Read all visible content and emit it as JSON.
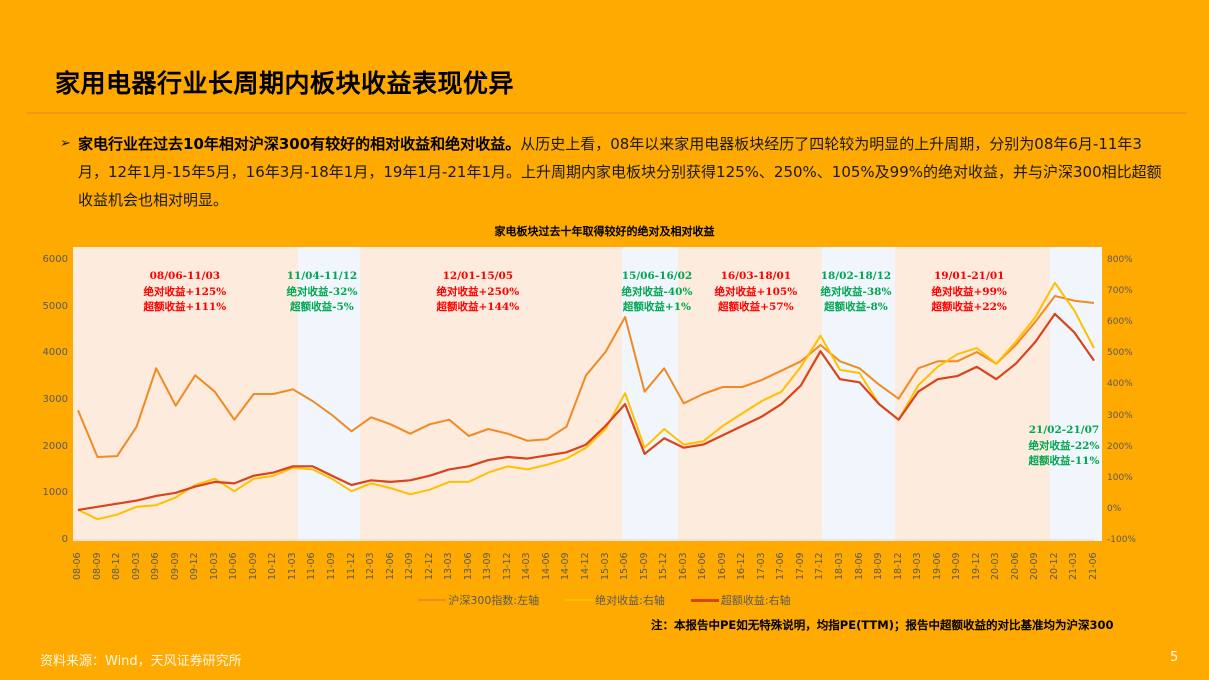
{
  "slide": {
    "title": "家用电器行业长周期内板块收益表现优异",
    "bullet_marker": "➢",
    "bullet_bold": "家电行业在过去10年相对沪深300有较好的相对收益和绝对收益。",
    "bullet_text": "从历史上看，08年以来家用电器板块经历了四轮较为明显的上升周期，分别为08年6月-11年3月，12年1月-15年5月，16年3月-18年1月，19年1月-21年1月。上升周期内家电板块分别获得125%、250%、105%及99%的绝对收益，并与沪深300相比超额收益机会也相对明显。",
    "note": "注：本报告中PE如无特殊说明，均指PE(TTM)；报告中超额收益的对比基准均为沪深300",
    "source": "资料来源：Wind，天风证券研究所",
    "page_number": "5"
  },
  "colors": {
    "background": "#FFAA00",
    "hs300": "#F08A24",
    "absolute": "#FFC000",
    "excess": "#D9441C",
    "up_band": "#FDEBDD",
    "down_band": "#F1F6FD",
    "ann_red": "#FF0000",
    "ann_green": "#00A651"
  },
  "chart_data": {
    "type": "line",
    "title": "家电板块过去十年取得较好的绝对及相对收益",
    "xlabel": "",
    "ylabel_left": "沪深300指数",
    "ylabel_right": "收益",
    "ylim_left": [
      0,
      6000
    ],
    "ylim_right": [
      -100,
      800
    ],
    "yticks_left": [
      "6000",
      "5000",
      "4000",
      "3000",
      "2000",
      "1000",
      "0"
    ],
    "yticks_right": [
      "800%",
      "700%",
      "600%",
      "500%",
      "400%",
      "300%",
      "200%",
      "100%",
      "0%",
      "-100%"
    ],
    "x_ticks": [
      "08-06",
      "08-09",
      "08-12",
      "09-03",
      "09-06",
      "09-09",
      "09-12",
      "10-03",
      "10-06",
      "10-09",
      "10-12",
      "11-03",
      "11-06",
      "11-09",
      "11-12",
      "12-03",
      "12-06",
      "12-09",
      "12-12",
      "13-03",
      "13-06",
      "13-09",
      "13-12",
      "14-03",
      "14-06",
      "14-09",
      "14-12",
      "15-03",
      "15-06",
      "15-09",
      "15-12",
      "16-03",
      "16-06",
      "16-09",
      "16-12",
      "17-03",
      "17-06",
      "17-09",
      "17-12",
      "18-03",
      "18-06",
      "18-09",
      "18-12",
      "19-03",
      "19-06",
      "19-09",
      "19-12",
      "20-03",
      "20-06",
      "20-09",
      "20-12",
      "21-03",
      "21-06"
    ],
    "legend": [
      {
        "name": "沪深300指数:左轴",
        "color": "#F08A24"
      },
      {
        "name": "绝对收益:右轴",
        "color": "#FFC000"
      },
      {
        "name": "超额收益:右轴",
        "color": "#D9441C"
      }
    ],
    "legend_position": "bottom",
    "grid": false,
    "x": [
      "08-06",
      "08-09",
      "08-12",
      "09-03",
      "09-06",
      "09-09",
      "09-12",
      "10-03",
      "10-06",
      "10-09",
      "10-12",
      "11-03",
      "11-06",
      "11-09",
      "11-12",
      "12-03",
      "12-06",
      "12-09",
      "12-12",
      "13-03",
      "13-06",
      "13-09",
      "13-12",
      "14-03",
      "14-06",
      "14-09",
      "14-12",
      "15-03",
      "15-06",
      "15-09",
      "15-12",
      "16-03",
      "16-06",
      "16-09",
      "16-12",
      "17-03",
      "17-06",
      "17-09",
      "17-12",
      "18-03",
      "18-06",
      "18-09",
      "18-12",
      "19-03",
      "19-06",
      "19-09",
      "19-12",
      "20-03",
      "20-06",
      "20-09",
      "20-12",
      "21-03",
      "21-06"
    ],
    "series": [
      {
        "name": "沪深300指数",
        "axis": "left",
        "values": [
          2800,
          1800,
          1820,
          2450,
          3700,
          2900,
          3550,
          3200,
          2600,
          3150,
          3150,
          3250,
          3000,
          2700,
          2350,
          2650,
          2500,
          2300,
          2500,
          2600,
          2250,
          2400,
          2300,
          2150,
          2180,
          2450,
          3550,
          4050,
          4800,
          3200,
          3700,
          2950,
          3150,
          3300,
          3300,
          3450,
          3650,
          3850,
          4200,
          3850,
          3700,
          3350,
          3050,
          3700,
          3850,
          3850,
          4050,
          3800,
          4200,
          4700,
          5250,
          5150,
          5100
        ]
      },
      {
        "name": "绝对收益",
        "axis": "right",
        "values": [
          0,
          -30,
          -15,
          10,
          15,
          40,
          80,
          100,
          60,
          100,
          110,
          135,
          130,
          100,
          60,
          85,
          70,
          50,
          65,
          90,
          90,
          120,
          140,
          130,
          145,
          165,
          200,
          260,
          375,
          200,
          260,
          210,
          220,
          270,
          310,
          350,
          380,
          460,
          560,
          450,
          440,
          340,
          290,
          400,
          460,
          500,
          520,
          470,
          540,
          620,
          730,
          640,
          520
        ]
      },
      {
        "name": "超额收益",
        "axis": "right",
        "values": [
          0,
          10,
          20,
          30,
          45,
          55,
          75,
          90,
          85,
          110,
          120,
          140,
          140,
          110,
          80,
          95,
          90,
          95,
          110,
          130,
          140,
          160,
          170,
          165,
          175,
          185,
          210,
          270,
          340,
          180,
          230,
          200,
          210,
          240,
          270,
          300,
          340,
          400,
          510,
          420,
          410,
          340,
          290,
          380,
          420,
          430,
          460,
          420,
          470,
          540,
          630,
          570,
          480
        ]
      }
    ],
    "periods": [
      {
        "range": "08/06-11/03",
        "absolute": "绝对收益+125%",
        "excess": "超额收益+111%",
        "trend": "up"
      },
      {
        "range": "11/04-11/12",
        "absolute": "绝对收益-32%",
        "excess": "超额收益-5%",
        "trend": "down"
      },
      {
        "range": "12/01-15/05",
        "absolute": "绝对收益+250%",
        "excess": "超额收益+144%",
        "trend": "up"
      },
      {
        "range": "15/06-16/02",
        "absolute": "绝对收益-40%",
        "excess": "超额收益+1%",
        "trend": "down"
      },
      {
        "range": "16/03-18/01",
        "absolute": "绝对收益+105%",
        "excess": "超额收益+57%",
        "trend": "up"
      },
      {
        "range": "18/02-18/12",
        "absolute": "绝对收益-38%",
        "excess": "超额收益-8%",
        "trend": "down"
      },
      {
        "range": "19/01-21/01",
        "absolute": "绝对收益+99%",
        "excess": "超额收益+22%",
        "trend": "up"
      },
      {
        "range": "21/02-21/07",
        "absolute": "绝对收益-22%",
        "excess": "超额收益-11%",
        "trend": "down"
      }
    ]
  }
}
